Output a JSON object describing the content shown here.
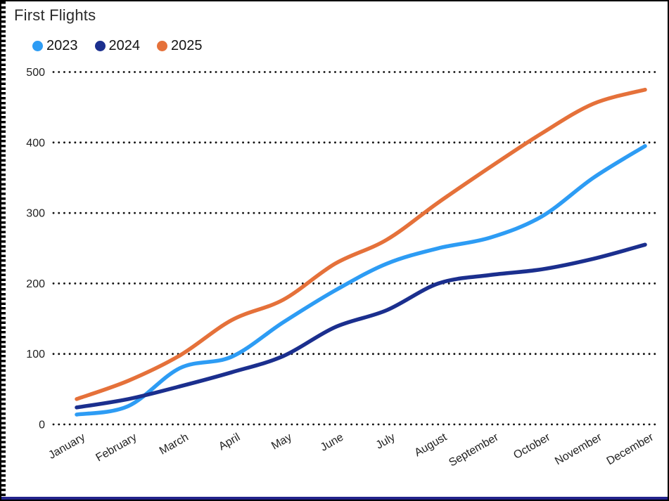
{
  "page": {
    "title": "First Flights"
  },
  "legend": {
    "position": "top-left",
    "items": [
      {
        "label": "2023",
        "color": "#2D9CF4"
      },
      {
        "label": "2024",
        "color": "#1B2F8E"
      },
      {
        "label": "2025",
        "color": "#E5713A"
      }
    ]
  },
  "chart_data": {
    "type": "line",
    "title": "First Flights",
    "categories": [
      "January",
      "February",
      "March",
      "April",
      "May",
      "June",
      "July",
      "August",
      "September",
      "October",
      "November",
      "December"
    ],
    "series": [
      {
        "name": "2023",
        "color": "#2D9CF4",
        "values": [
          14,
          26,
          80,
          96,
          145,
          190,
          228,
          250,
          265,
          295,
          350,
          395
        ]
      },
      {
        "name": "2024",
        "color": "#1B2F8E",
        "values": [
          24,
          36,
          54,
          74,
          97,
          138,
          162,
          200,
          212,
          220,
          235,
          255
        ]
      },
      {
        "name": "2025",
        "color": "#E5713A",
        "values": [
          36,
          62,
          98,
          148,
          177,
          228,
          262,
          315,
          365,
          413,
          455,
          475
        ]
      }
    ],
    "xlabel": "",
    "ylabel": "",
    "ylim": [
      0,
      500
    ],
    "yticks": [
      0,
      100,
      200,
      300,
      400,
      500
    ],
    "grid": "dotted-horizontal",
    "legend_position": "top-left",
    "x_tick_rotation_deg": -30,
    "line_style": "smooth"
  },
  "colors": {
    "background": "#ffffff",
    "border": "#000000",
    "bottom_bar": "#23238b",
    "grid_dots": "#111111",
    "text": "#222222"
  }
}
